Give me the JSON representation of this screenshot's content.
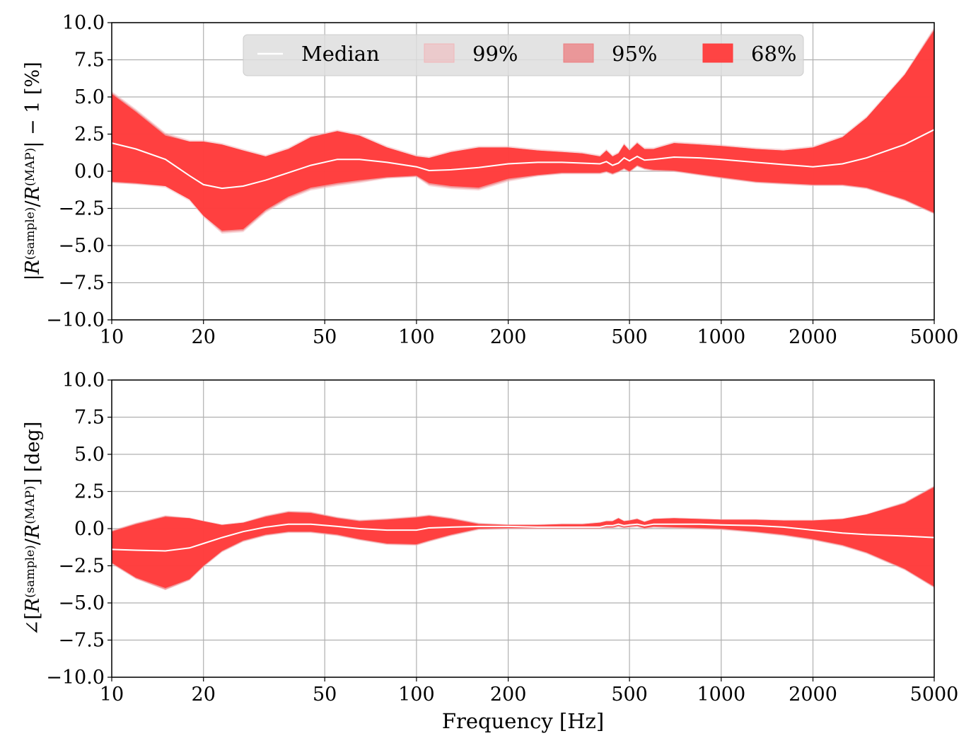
{
  "chart_data": [
    {
      "type": "area",
      "panel": "magnitude",
      "ylabel_parts": {
        "bar_open": "|",
        "R": "R",
        "sup1": "(sample)",
        "slash": "/",
        "R2": "R",
        "sup2": "(MAP)",
        "tail": "| − 1 [%]"
      },
      "xlabel": "",
      "xscale": "log",
      "xlim": [
        10,
        5000
      ],
      "ylim": [
        -10,
        10
      ],
      "xticks": [
        10,
        20,
        50,
        100,
        200,
        500,
        1000,
        2000,
        5000
      ],
      "xtick_labels": [
        "10",
        "20",
        "50",
        "100",
        "200",
        "500",
        "1000",
        "2000",
        "5000"
      ],
      "yticks": [
        -10,
        -7.5,
        -5,
        -2.5,
        0,
        2.5,
        5,
        7.5,
        10
      ],
      "ytick_labels": [
        "−10.0",
        "−7.5",
        "−5.0",
        "−2.5",
        "0.0",
        "2.5",
        "5.0",
        "7.5",
        "10.0"
      ],
      "grid": true,
      "legend": {
        "placement": "top-center",
        "entries": [
          "Median",
          "99%",
          "95%",
          "68%"
        ]
      },
      "x": [
        10,
        12,
        15,
        18,
        20,
        23,
        27,
        32,
        38,
        45,
        55,
        65,
        80,
        100,
        110,
        130,
        160,
        200,
        250,
        300,
        350,
        400,
        420,
        440,
        460,
        480,
        500,
        530,
        560,
        600,
        700,
        850,
        1000,
        1300,
        1600,
        2000,
        2500,
        3000,
        4000,
        5000
      ],
      "series": [
        {
          "name": "Median",
          "values": [
            1.9,
            1.5,
            0.8,
            -0.3,
            -0.9,
            -1.15,
            -1.0,
            -0.6,
            -0.1,
            0.4,
            0.8,
            0.8,
            0.6,
            0.3,
            0.05,
            0.1,
            0.25,
            0.5,
            0.6,
            0.6,
            0.55,
            0.5,
            0.65,
            0.4,
            0.55,
            0.9,
            0.7,
            1.0,
            0.75,
            0.8,
            0.95,
            0.9,
            0.8,
            0.6,
            0.45,
            0.3,
            0.5,
            0.9,
            1.8,
            2.8
          ]
        },
        {
          "name": "99%",
          "upper": [
            5.4,
            4.2,
            2.6,
            2.1,
            2.1,
            1.9,
            1.5,
            1.1,
            1.6,
            2.4,
            2.8,
            2.5,
            1.7,
            1.1,
            1.0,
            1.4,
            1.7,
            1.7,
            1.5,
            1.4,
            1.3,
            1.1,
            1.5,
            1.1,
            1.3,
            1.9,
            1.5,
            2.0,
            1.6,
            1.6,
            2.0,
            1.9,
            1.8,
            1.6,
            1.5,
            1.7,
            2.4,
            3.7,
            6.6,
            9.7
          ],
          "lower": [
            -0.8,
            -0.9,
            -1.1,
            -2.0,
            -3.1,
            -4.2,
            -4.1,
            -2.8,
            -1.9,
            -1.3,
            -1.0,
            -0.8,
            -0.5,
            -0.4,
            -1.0,
            -1.2,
            -1.3,
            -0.7,
            -0.35,
            -0.2,
            -0.2,
            -0.2,
            -0.1,
            -0.25,
            -0.1,
            0.1,
            -0.1,
            0.3,
            0.1,
            0.0,
            -0.05,
            -0.3,
            -0.5,
            -0.8,
            -0.9,
            -1.0,
            -1.0,
            -1.2,
            -2.0,
            -2.9
          ]
        },
        {
          "name": "95%",
          "upper": [
            5.3,
            4.1,
            2.5,
            2.0,
            2.0,
            1.8,
            1.4,
            1.0,
            1.5,
            2.3,
            2.7,
            2.4,
            1.6,
            1.0,
            0.9,
            1.3,
            1.6,
            1.6,
            1.4,
            1.3,
            1.2,
            1.0,
            1.4,
            1.0,
            1.2,
            1.8,
            1.4,
            1.9,
            1.5,
            1.5,
            1.9,
            1.8,
            1.7,
            1.5,
            1.4,
            1.6,
            2.3,
            3.6,
            6.5,
            9.6
          ],
          "lower": [
            -0.75,
            -0.85,
            -1.0,
            -1.9,
            -3.0,
            -4.1,
            -4.0,
            -2.7,
            -1.8,
            -1.2,
            -0.9,
            -0.7,
            -0.45,
            -0.35,
            -0.9,
            -1.1,
            -1.2,
            -0.6,
            -0.3,
            -0.15,
            -0.15,
            -0.15,
            -0.05,
            -0.2,
            -0.05,
            0.15,
            -0.05,
            0.35,
            0.15,
            0.05,
            0.0,
            -0.25,
            -0.45,
            -0.75,
            -0.85,
            -0.95,
            -0.95,
            -1.15,
            -1.95,
            -2.85
          ]
        },
        {
          "name": "68%",
          "upper": [
            5.2,
            4.0,
            2.4,
            2.0,
            2.0,
            1.8,
            1.4,
            1.0,
            1.5,
            2.3,
            2.7,
            2.4,
            1.6,
            1.0,
            0.9,
            1.3,
            1.6,
            1.6,
            1.4,
            1.3,
            1.2,
            1.0,
            1.4,
            1.0,
            1.2,
            1.8,
            1.4,
            1.9,
            1.5,
            1.5,
            1.9,
            1.8,
            1.7,
            1.5,
            1.4,
            1.6,
            2.3,
            3.6,
            6.5,
            9.5
          ],
          "lower": [
            -0.7,
            -0.8,
            -1.0,
            -1.9,
            -3.0,
            -4.0,
            -3.9,
            -2.6,
            -1.7,
            -1.1,
            -0.8,
            -0.6,
            -0.4,
            -0.3,
            -0.8,
            -1.0,
            -1.1,
            -0.5,
            -0.25,
            -0.1,
            -0.1,
            -0.1,
            0.0,
            -0.15,
            0.0,
            0.2,
            0.0,
            0.4,
            0.2,
            0.1,
            0.05,
            -0.2,
            -0.4,
            -0.7,
            -0.8,
            -0.9,
            -0.9,
            -1.1,
            -1.9,
            -2.8
          ]
        }
      ]
    },
    {
      "type": "area",
      "panel": "phase",
      "ylabel_parts": {
        "angle": "∠[",
        "R": "R",
        "sup1": "(sample)",
        "slash": "/",
        "R2": "R",
        "sup2": "(MAP)",
        "tail": "] [deg]"
      },
      "xlabel": "Frequency [Hz]",
      "xscale": "log",
      "xlim": [
        10,
        5000
      ],
      "ylim": [
        -10,
        10
      ],
      "xticks": [
        10,
        20,
        50,
        100,
        200,
        500,
        1000,
        2000,
        5000
      ],
      "xtick_labels": [
        "10",
        "20",
        "50",
        "100",
        "200",
        "500",
        "1000",
        "2000",
        "5000"
      ],
      "yticks": [
        -10,
        -7.5,
        -5,
        -2.5,
        0,
        2.5,
        5,
        7.5,
        10
      ],
      "ytick_labels": [
        "−10.0",
        "−7.5",
        "−5.0",
        "−2.5",
        "0.0",
        "2.5",
        "5.0",
        "7.5",
        "10.0"
      ],
      "grid": true,
      "x": [
        10,
        12,
        15,
        18,
        20,
        23,
        27,
        32,
        38,
        45,
        55,
        65,
        80,
        100,
        110,
        130,
        160,
        200,
        250,
        300,
        350,
        400,
        420,
        440,
        460,
        480,
        500,
        530,
        560,
        600,
        700,
        850,
        1000,
        1300,
        1600,
        2000,
        2500,
        3000,
        4000,
        5000
      ],
      "series": [
        {
          "name": "Median",
          "values": [
            -1.4,
            -1.45,
            -1.5,
            -1.3,
            -1.0,
            -0.6,
            -0.2,
            0.1,
            0.3,
            0.3,
            0.15,
            0.0,
            -0.1,
            -0.1,
            0.05,
            0.1,
            0.15,
            0.15,
            0.1,
            0.1,
            0.1,
            0.1,
            0.2,
            0.2,
            0.3,
            0.2,
            0.25,
            0.3,
            0.2,
            0.3,
            0.3,
            0.3,
            0.25,
            0.2,
            0.1,
            -0.1,
            -0.3,
            -0.4,
            -0.5,
            -0.6
          ]
        },
        {
          "name": "99%",
          "upper": [
            -0.1,
            0.4,
            0.9,
            0.75,
            0.55,
            0.3,
            0.45,
            0.9,
            1.2,
            1.15,
            0.8,
            0.6,
            0.7,
            0.85,
            0.95,
            0.75,
            0.4,
            0.3,
            0.3,
            0.35,
            0.35,
            0.45,
            0.55,
            0.55,
            0.75,
            0.55,
            0.6,
            0.7,
            0.5,
            0.7,
            0.75,
            0.7,
            0.65,
            0.65,
            0.6,
            0.6,
            0.7,
            1.0,
            1.8,
            2.9
          ],
          "lower": [
            -2.4,
            -3.4,
            -4.15,
            -3.5,
            -2.6,
            -1.6,
            -0.9,
            -0.5,
            -0.3,
            -0.3,
            -0.5,
            -0.8,
            -1.1,
            -1.15,
            -0.9,
            -0.5,
            -0.1,
            -0.05,
            -0.05,
            -0.05,
            -0.05,
            -0.05,
            0.0,
            0.0,
            0.1,
            0.0,
            0.05,
            0.1,
            -0.05,
            0.05,
            0.0,
            -0.05,
            -0.1,
            -0.3,
            -0.5,
            -0.8,
            -1.2,
            -1.7,
            -2.8,
            -4.0
          ]
        },
        {
          "name": "95%",
          "upper": [
            -0.15,
            0.35,
            0.85,
            0.7,
            0.5,
            0.25,
            0.4,
            0.85,
            1.15,
            1.1,
            0.75,
            0.55,
            0.65,
            0.8,
            0.9,
            0.7,
            0.35,
            0.25,
            0.25,
            0.3,
            0.3,
            0.4,
            0.5,
            0.5,
            0.7,
            0.5,
            0.55,
            0.65,
            0.45,
            0.65,
            0.7,
            0.65,
            0.6,
            0.6,
            0.55,
            0.55,
            0.65,
            0.95,
            1.75,
            2.85
          ],
          "lower": [
            -2.35,
            -3.35,
            -4.1,
            -3.45,
            -2.55,
            -1.55,
            -0.85,
            -0.45,
            -0.25,
            -0.25,
            -0.45,
            -0.75,
            -1.05,
            -1.1,
            -0.85,
            -0.45,
            -0.05,
            0.0,
            0.0,
            0.0,
            0.0,
            0.0,
            0.05,
            0.05,
            0.15,
            0.05,
            0.1,
            0.15,
            0.0,
            0.1,
            0.05,
            0.0,
            -0.05,
            -0.25,
            -0.45,
            -0.75,
            -1.15,
            -1.65,
            -2.75,
            -3.95
          ]
        },
        {
          "name": "68%",
          "upper": [
            -0.2,
            0.3,
            0.8,
            0.7,
            0.5,
            0.25,
            0.4,
            0.8,
            1.1,
            1.05,
            0.7,
            0.5,
            0.6,
            0.75,
            0.85,
            0.65,
            0.3,
            0.25,
            0.25,
            0.3,
            0.3,
            0.4,
            0.5,
            0.5,
            0.7,
            0.5,
            0.55,
            0.65,
            0.45,
            0.65,
            0.7,
            0.65,
            0.6,
            0.6,
            0.55,
            0.55,
            0.65,
            0.95,
            1.7,
            2.8
          ],
          "lower": [
            -2.3,
            -3.3,
            -4.0,
            -3.4,
            -2.5,
            -1.5,
            -0.8,
            -0.4,
            -0.2,
            -0.2,
            -0.4,
            -0.7,
            -1.0,
            -1.05,
            -0.8,
            -0.4,
            0.0,
            0.05,
            0.05,
            0.05,
            0.05,
            0.05,
            0.1,
            0.1,
            0.2,
            0.1,
            0.15,
            0.2,
            0.05,
            0.15,
            0.1,
            0.05,
            0.0,
            -0.2,
            -0.4,
            -0.7,
            -1.1,
            -1.6,
            -2.7,
            -3.9
          ]
        }
      ]
    }
  ],
  "colors": {
    "band_99": "#f2b6b9",
    "band_95": "#ec7d80",
    "band_68": "#ff3b3b",
    "median": "#ffffff",
    "grid": "#b0b0b0",
    "legend_bg": "#dedede",
    "legend_edge": "#cccccc"
  }
}
